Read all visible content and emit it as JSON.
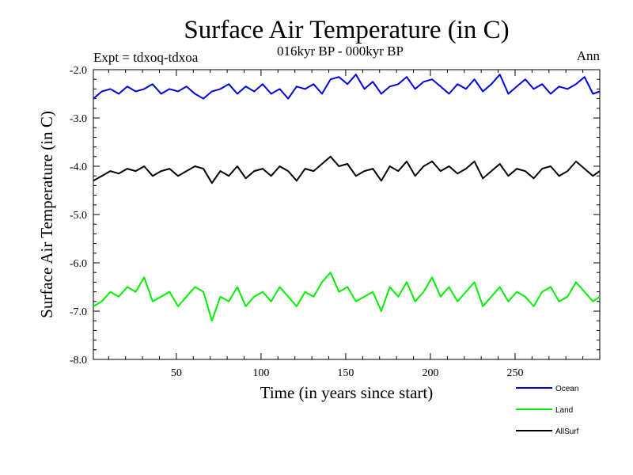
{
  "chart_data": {
    "type": "line",
    "title": "Surface Air Temperature (in C)",
    "subtitle": "016kyr BP - 000kyr BP",
    "left_note": "Expt = tdxoq-tdxoa",
    "right_note": "Ann",
    "xlabel": "Time (in years since start)",
    "ylabel": "Surface Air Temperature (in C)",
    "xlim": [
      1,
      300
    ],
    "ylim": [
      -8.0,
      -2.0
    ],
    "x_ticks": [
      50,
      100,
      150,
      200,
      250
    ],
    "x_tick_labels": [
      "50",
      "100",
      "150",
      "200",
      "250"
    ],
    "y_ticks": [
      -8.0,
      -7.0,
      -6.0,
      -5.0,
      -4.0,
      -3.0,
      -2.0
    ],
    "y_tick_labels": [
      "-8.0",
      "-7.0",
      "-6.0",
      "-5.0",
      "-4.0",
      "-3.0",
      "-2.0"
    ],
    "grid": false,
    "legend_placement": "bottom-right outside",
    "x": [
      1,
      6,
      11,
      16,
      21,
      26,
      31,
      36,
      41,
      46,
      51,
      56,
      61,
      66,
      71,
      76,
      81,
      86,
      91,
      96,
      101,
      106,
      111,
      116,
      121,
      126,
      131,
      136,
      141,
      146,
      151,
      156,
      161,
      166,
      171,
      176,
      181,
      186,
      191,
      196,
      201,
      206,
      211,
      216,
      221,
      226,
      231,
      236,
      241,
      246,
      251,
      256,
      261,
      266,
      271,
      276,
      281,
      286,
      291,
      296,
      300
    ],
    "series": [
      {
        "name": "Ocean",
        "color": "#0000dd",
        "values": [
          -2.6,
          -2.45,
          -2.4,
          -2.5,
          -2.35,
          -2.45,
          -2.4,
          -2.3,
          -2.5,
          -2.4,
          -2.45,
          -2.35,
          -2.5,
          -2.6,
          -2.45,
          -2.4,
          -2.3,
          -2.5,
          -2.35,
          -2.45,
          -2.3,
          -2.5,
          -2.4,
          -2.6,
          -2.35,
          -2.4,
          -2.3,
          -2.5,
          -2.2,
          -2.15,
          -2.3,
          -2.1,
          -2.4,
          -2.25,
          -2.5,
          -2.35,
          -2.3,
          -2.15,
          -2.4,
          -2.25,
          -2.2,
          -2.35,
          -2.5,
          -2.3,
          -2.4,
          -2.2,
          -2.45,
          -2.3,
          -2.1,
          -2.5,
          -2.35,
          -2.2,
          -2.4,
          -2.3,
          -2.5,
          -2.35,
          -2.4,
          -2.3,
          -2.15,
          -2.5,
          -2.45
        ]
      },
      {
        "name": "Land",
        "color": "#00ee00",
        "values": [
          -6.9,
          -6.8,
          -6.6,
          -6.7,
          -6.5,
          -6.6,
          -6.3,
          -6.8,
          -6.7,
          -6.6,
          -6.9,
          -6.7,
          -6.5,
          -6.6,
          -7.2,
          -6.7,
          -6.8,
          -6.5,
          -6.9,
          -6.7,
          -6.6,
          -6.8,
          -6.5,
          -6.7,
          -6.9,
          -6.6,
          -6.7,
          -6.4,
          -6.2,
          -6.6,
          -6.5,
          -6.8,
          -6.7,
          -6.6,
          -7.0,
          -6.5,
          -6.7,
          -6.4,
          -6.8,
          -6.6,
          -6.3,
          -6.7,
          -6.5,
          -6.8,
          -6.6,
          -6.4,
          -6.9,
          -6.7,
          -6.5,
          -6.8,
          -6.6,
          -6.7,
          -6.9,
          -6.6,
          -6.5,
          -6.8,
          -6.7,
          -6.4,
          -6.6,
          -6.8,
          -6.7
        ]
      },
      {
        "name": "AllSurf",
        "color": "#000000",
        "values": [
          -4.3,
          -4.2,
          -4.1,
          -4.15,
          -4.05,
          -4.1,
          -4.0,
          -4.2,
          -4.1,
          -4.05,
          -4.2,
          -4.1,
          -4.0,
          -4.05,
          -4.35,
          -4.1,
          -4.2,
          -4.0,
          -4.25,
          -4.1,
          -4.05,
          -4.2,
          -4.0,
          -4.1,
          -4.3,
          -4.05,
          -4.1,
          -3.95,
          -3.8,
          -4.0,
          -3.95,
          -4.2,
          -4.1,
          -4.05,
          -4.3,
          -4.0,
          -4.1,
          -3.9,
          -4.2,
          -4.0,
          -3.9,
          -4.1,
          -4.0,
          -4.15,
          -4.05,
          -3.9,
          -4.25,
          -4.1,
          -3.95,
          -4.2,
          -4.05,
          -4.1,
          -4.25,
          -4.05,
          -4.0,
          -4.2,
          -4.1,
          -3.9,
          -4.05,
          -4.2,
          -4.1
        ]
      }
    ]
  }
}
